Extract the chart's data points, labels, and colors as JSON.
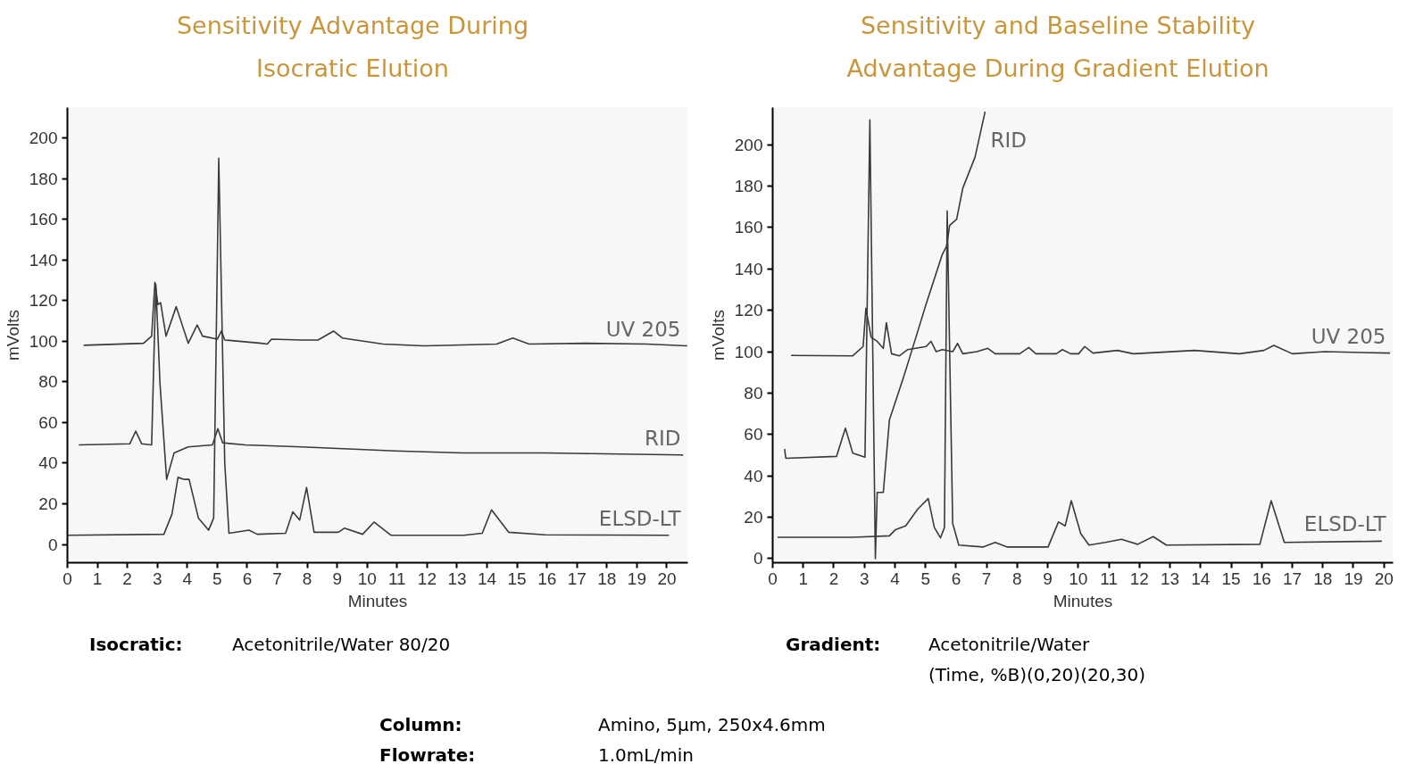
{
  "chart_data": [
    {
      "type": "line",
      "title": "Sensitivity Advantage During\nIsocratic Elution",
      "xlabel": "Minutes",
      "ylabel": "mVolts",
      "xlim": [
        0,
        20.7
      ],
      "ylim": [
        -9,
        215
      ],
      "xticks": [
        0,
        1,
        2,
        3,
        4,
        5,
        6,
        7,
        8,
        9,
        10,
        11,
        12,
        13,
        14,
        15,
        16,
        17,
        18,
        19,
        20
      ],
      "yticks": [
        0,
        20,
        40,
        60,
        80,
        100,
        120,
        140,
        160,
        180,
        200
      ],
      "line_style": "solid",
      "series": [
        {
          "name": "UV 205",
          "color": "#3a3a3a",
          "x": [
            0.54,
            2.54,
            2.81,
            2.92,
            3.02,
            3.11,
            3.29,
            3.63,
            4.03,
            4.33,
            4.51,
            5.0,
            5.14,
            5.25,
            6.47,
            6.67,
            6.81,
            7.82,
            8.36,
            8.88,
            9.17,
            10.53,
            11.88,
            14.32,
            14.86,
            15.4,
            17.3,
            19.32,
            20.68
          ],
          "values": [
            98,
            99,
            102.5,
            129,
            118,
            119,
            102.5,
            117,
            99,
            108,
            102.5,
            101,
            105,
            100.6,
            99,
            98.6,
            101,
            100.6,
            100.6,
            105,
            101.6,
            98.6,
            97.7,
            98.6,
            101.6,
            98.6,
            99,
            98.6,
            97.7
          ]
        },
        {
          "name": "RID",
          "color": "#3a3a3a",
          "x": [
            0.38,
            2.08,
            2.28,
            2.48,
            2.81,
            2.95,
            3.09,
            3.31,
            3.56,
            4.03,
            4.84,
            5.02,
            5.18,
            5.93,
            7.82,
            10.93,
            13.23,
            15.94,
            20.54
          ],
          "values": [
            49,
            49.5,
            55.7,
            49.5,
            49,
            128,
            79,
            32,
            45,
            48,
            49,
            57,
            50,
            49,
            48,
            46,
            45,
            45,
            44
          ]
        },
        {
          "name": "ELSD-LT",
          "color": "#3a3a3a",
          "x": [
            0,
            3.22,
            3.49,
            3.69,
            3.9,
            4.06,
            4.37,
            4.71,
            4.88,
            5.05,
            5.25,
            5.39,
            6.06,
            6.33,
            7.28,
            7.52,
            7.75,
            7.98,
            8.23,
            9.04,
            9.24,
            9.85,
            10.23,
            10.8,
            13.23,
            13.84,
            14.15,
            14.72,
            15.94,
            20.07
          ],
          "values": [
            4.5,
            5,
            15,
            33,
            32,
            32,
            13,
            7,
            13,
            190,
            40,
            5.5,
            7,
            5,
            5.5,
            16,
            12,
            28,
            6,
            6,
            8,
            5,
            11,
            4.5,
            4.5,
            5.5,
            17,
            6,
            4.7,
            4.5
          ]
        }
      ],
      "annotations": [
        "Isocratic:",
        "Acetonitrile/Water 80/20"
      ]
    },
    {
      "type": "line",
      "title": "Sensitivity and Baseline Stability\nAdvantage During Gradient Elution",
      "xlabel": "Minutes",
      "ylabel": "mVolts",
      "xlim": [
        0,
        20.3
      ],
      "ylim": [
        -2,
        218
      ],
      "xticks": [
        0,
        1,
        2,
        3,
        4,
        5,
        6,
        7,
        8,
        9,
        10,
        11,
        12,
        13,
        14,
        15,
        16,
        17,
        18,
        19,
        20
      ],
      "yticks": [
        0,
        20,
        40,
        60,
        80,
        100,
        120,
        140,
        160,
        180,
        200
      ],
      "line_style": "solid",
      "series": [
        {
          "name": "RID",
          "color": "#3a3a3a",
          "x": [
            0.39,
            0.43,
            2.09,
            2.38,
            2.62,
            3.02,
            3.18,
            3.36,
            3.42,
            3.62,
            3.82,
            4.29,
            4.75,
            5.02,
            5.55,
            5.69,
            5.79,
            6.02,
            6.22,
            6.62,
            6.95
          ],
          "values": [
            53,
            48.5,
            49.4,
            63,
            51,
            49,
            212,
            0,
            32,
            32,
            67,
            88,
            110,
            123,
            147,
            151,
            161,
            164,
            179,
            194,
            216
          ]
        },
        {
          "name": "UV 205",
          "color": "#3a3a3a",
          "x": [
            0.6,
            2.62,
            2.96,
            3.05,
            3.22,
            3.42,
            3.62,
            3.72,
            3.89,
            4.15,
            4.42,
            5.02,
            5.18,
            5.35,
            5.55,
            5.89,
            6.05,
            6.22,
            6.68,
            7.04,
            7.28,
            8.08,
            8.38,
            8.61,
            9.28,
            9.48,
            9.75,
            10.01,
            10.21,
            10.48,
            11.28,
            11.8,
            13.8,
            15.27,
            16.07,
            16.4,
            17.0,
            18.07,
            20.2
          ],
          "values": [
            98.2,
            98,
            102.5,
            121,
            107,
            105,
            101.6,
            114,
            99,
            98,
            101,
            102.5,
            105,
            100,
            101,
            100,
            104,
            99,
            100,
            101.6,
            99,
            99,
            102,
            99,
            99,
            101,
            99,
            99,
            102.5,
            99.3,
            100.6,
            99,
            100.6,
            99,
            100.6,
            103,
            99,
            100,
            99.3
          ]
        },
        {
          "name": "ELSD-LT",
          "color": "#3a3a3a",
          "x": [
            0.16,
            2.62,
            3.82,
            4.02,
            4.35,
            4.75,
            5.09,
            5.29,
            5.49,
            5.62,
            5.71,
            5.89,
            6.09,
            6.88,
            7.28,
            7.68,
            9.01,
            9.35,
            9.57,
            9.77,
            10.08,
            10.35,
            10.88,
            11.41,
            11.94,
            12.45,
            12.88,
            15.94,
            16.31,
            16.74,
            19.93
          ],
          "values": [
            10.3,
            10.3,
            11,
            14,
            15.8,
            24,
            29,
            15,
            10,
            15,
            168,
            17,
            6.5,
            5.6,
            7.8,
            5.6,
            5.6,
            17.7,
            15.8,
            28,
            12,
            6.5,
            7.8,
            9.3,
            6.9,
            10.6,
            6.5,
            6.9,
            28,
            7.8,
            8.4
          ]
        }
      ],
      "annotations": [
        "Gradient:",
        "Acetonitrile/Water",
        "(Time, %B)(0,20)(20,30)"
      ]
    },
    {
      "type": "other",
      "annotations": [
        "Column:",
        "Amino, 5µm, 250x4.6mm",
        "Flowrate:",
        "1.0mL/min"
      ]
    }
  ]
}
